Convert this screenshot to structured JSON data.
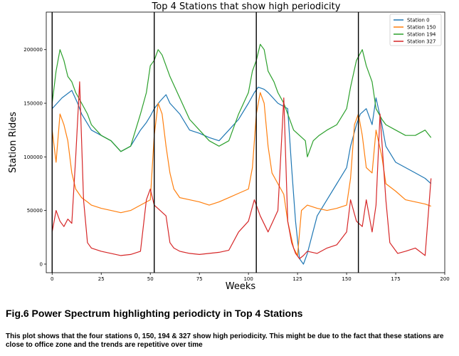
{
  "chart_data": {
    "type": "line",
    "title": "Top 4 Stations that show high periodicity",
    "xlabel": "Weeks",
    "ylabel": "Station Rides",
    "xlim": [
      -3,
      200
    ],
    "ylim": [
      -8000,
      235000
    ],
    "xticks": [
      0,
      25,
      50,
      75,
      100,
      125,
      150,
      175,
      200
    ],
    "yticks": [
      0,
      50000,
      100000,
      150000,
      200000
    ],
    "grid": false,
    "legend_position": "top-right",
    "vlines": [
      0,
      52,
      104,
      156
    ],
    "series": [
      {
        "name": "Station 0",
        "color": "#1f77b4",
        "x": [
          0,
          5,
          10,
          13,
          15,
          20,
          25,
          30,
          35,
          40,
          45,
          48,
          50,
          52,
          55,
          58,
          60,
          65,
          70,
          75,
          80,
          85,
          90,
          95,
          100,
          103,
          105,
          108,
          110,
          115,
          120,
          122,
          124,
          126,
          128,
          130,
          135,
          140,
          145,
          150,
          152,
          155,
          157,
          160,
          163,
          165,
          168,
          170,
          175,
          180,
          185,
          190,
          193
        ],
        "values": [
          145000,
          155000,
          162000,
          150000,
          140000,
          125000,
          120000,
          115000,
          105000,
          110000,
          125000,
          132000,
          138000,
          145000,
          152000,
          158000,
          150000,
          140000,
          125000,
          122000,
          118000,
          115000,
          125000,
          135000,
          150000,
          160000,
          165000,
          163000,
          160000,
          150000,
          145000,
          90000,
          40000,
          5000,
          0,
          10000,
          45000,
          60000,
          75000,
          90000,
          110000,
          130000,
          140000,
          145000,
          130000,
          155000,
          130000,
          110000,
          95000,
          90000,
          85000,
          80000,
          75000
        ]
      },
      {
        "name": "Station 150",
        "color": "#ff7f0e",
        "x": [
          0,
          2,
          4,
          6,
          8,
          10,
          12,
          15,
          18,
          20,
          25,
          30,
          35,
          40,
          45,
          48,
          50,
          52,
          54,
          56,
          58,
          60,
          62,
          65,
          70,
          75,
          80,
          85,
          90,
          95,
          100,
          102,
          104,
          106,
          108,
          110,
          112,
          115,
          118,
          120,
          123,
          125,
          127,
          130,
          135,
          140,
          145,
          150,
          152,
          154,
          156,
          158,
          160,
          163,
          165,
          168,
          170,
          175,
          180,
          185,
          190,
          193
        ],
        "values": [
          125000,
          95000,
          140000,
          130000,
          115000,
          85000,
          70000,
          62000,
          58000,
          55000,
          52000,
          50000,
          48000,
          50000,
          55000,
          58000,
          60000,
          120000,
          150000,
          140000,
          110000,
          85000,
          70000,
          62000,
          60000,
          58000,
          55000,
          58000,
          62000,
          66000,
          70000,
          90000,
          140000,
          160000,
          150000,
          110000,
          85000,
          75000,
          65000,
          40000,
          15000,
          8000,
          50000,
          55000,
          52000,
          50000,
          52000,
          55000,
          80000,
          130000,
          140000,
          120000,
          90000,
          85000,
          125000,
          100000,
          75000,
          68000,
          60000,
          58000,
          56000,
          54000
        ]
      },
      {
        "name": "Station 194",
        "color": "#2ca02c",
        "x": [
          0,
          2,
          4,
          6,
          8,
          10,
          12,
          15,
          18,
          20,
          25,
          30,
          35,
          40,
          45,
          48,
          50,
          52,
          54,
          56,
          58,
          60,
          65,
          70,
          75,
          80,
          85,
          90,
          95,
          100,
          102,
          104,
          106,
          108,
          110,
          113,
          115,
          118,
          120,
          123,
          126,
          129,
          130,
          133,
          136,
          140,
          145,
          150,
          152,
          155,
          158,
          160,
          163,
          165,
          168,
          170,
          175,
          180,
          185,
          190,
          193
        ],
        "values": [
          150000,
          180000,
          200000,
          190000,
          175000,
          170000,
          160000,
          150000,
          140000,
          130000,
          120000,
          115000,
          105000,
          110000,
          140000,
          160000,
          185000,
          190000,
          200000,
          195000,
          185000,
          175000,
          155000,
          135000,
          125000,
          115000,
          110000,
          115000,
          140000,
          160000,
          180000,
          190000,
          205000,
          200000,
          180000,
          170000,
          160000,
          150000,
          140000,
          125000,
          120000,
          115000,
          100000,
          115000,
          120000,
          125000,
          130000,
          145000,
          165000,
          190000,
          200000,
          185000,
          170000,
          145000,
          135000,
          130000,
          125000,
          120000,
          120000,
          125000,
          118000
        ]
      },
      {
        "name": "Station 327",
        "color": "#d62728",
        "x": [
          0,
          2,
          4,
          6,
          8,
          10,
          12,
          14,
          16,
          18,
          20,
          25,
          30,
          35,
          40,
          45,
          48,
          50,
          52,
          55,
          58,
          60,
          62,
          65,
          70,
          75,
          80,
          85,
          90,
          95,
          100,
          103,
          106,
          110,
          115,
          118,
          120,
          122,
          124,
          126,
          128,
          130,
          135,
          140,
          145,
          150,
          152,
          155,
          158,
          160,
          163,
          165,
          167,
          170,
          172,
          174,
          176,
          180,
          185,
          190,
          193
        ],
        "values": [
          30000,
          50000,
          40000,
          35000,
          42000,
          38000,
          100000,
          170000,
          60000,
          20000,
          15000,
          12000,
          10000,
          8000,
          9000,
          12000,
          60000,
          70000,
          55000,
          50000,
          45000,
          20000,
          15000,
          12000,
          10000,
          9000,
          10000,
          11000,
          13000,
          30000,
          40000,
          60000,
          45000,
          30000,
          50000,
          155000,
          40000,
          20000,
          10000,
          5000,
          8000,
          12000,
          10000,
          15000,
          18000,
          30000,
          60000,
          40000,
          35000,
          60000,
          30000,
          55000,
          140000,
          60000,
          20000,
          15000,
          10000,
          12000,
          15000,
          8000,
          80000
        ]
      }
    ]
  },
  "caption": {
    "title": "Fig.6 Power Spectrum highlighting periodicty in Top 4 Stations",
    "body": "This plot shows that the four stations 0, 150, 194 & 327 show high periodicity. This might be due to the fact that these stations are close to office zone and the trends are repetitive over time"
  }
}
